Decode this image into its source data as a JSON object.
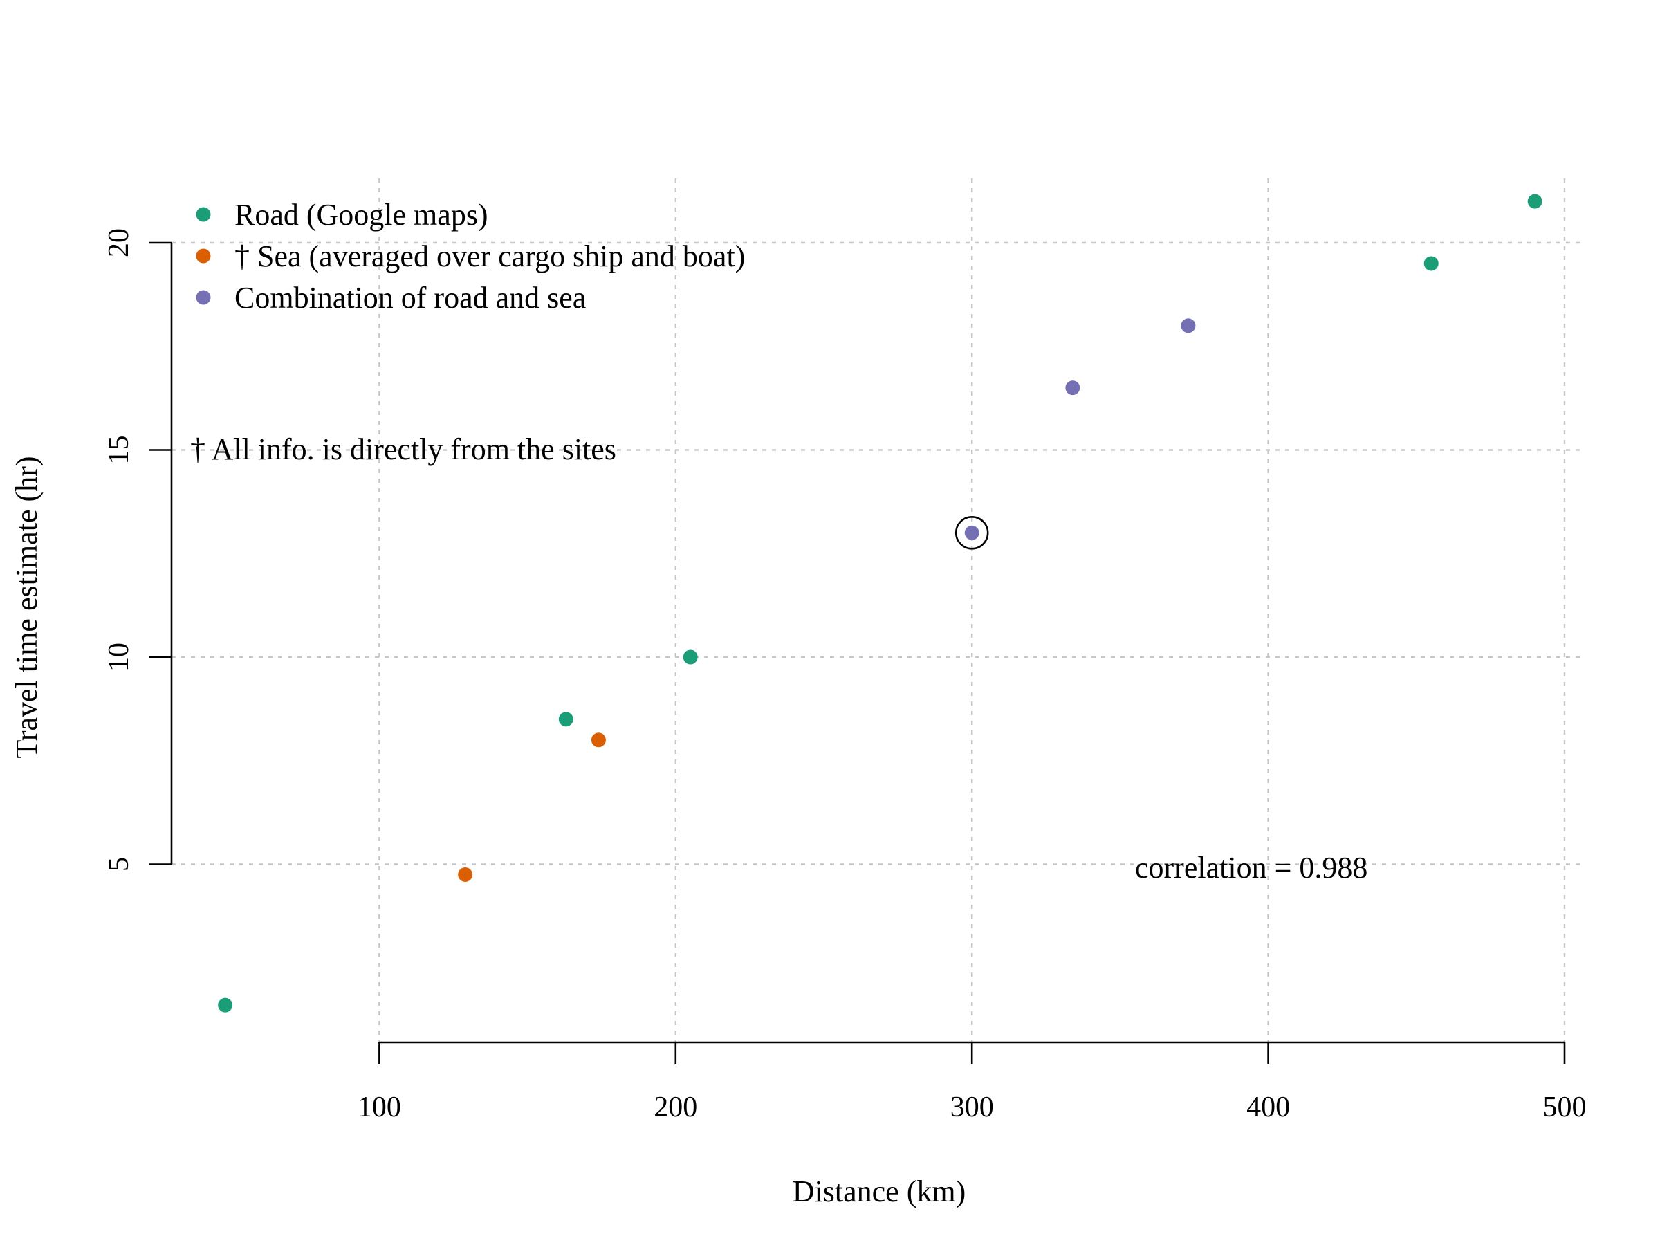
{
  "chart_data": {
    "type": "scatter",
    "title": "",
    "xlabel": "Distance (km)",
    "ylabel": "Travel time estimate (hr)",
    "xlim": [
      30,
      500
    ],
    "ylim": [
      0,
      22
    ],
    "x_ticks": [
      100,
      200,
      300,
      400,
      500
    ],
    "y_ticks": [
      5,
      10,
      15,
      20
    ],
    "grid": true,
    "legend_position": "top-left",
    "series": [
      {
        "name": "Road (Google maps)",
        "color": "#1b9e77",
        "points": [
          {
            "x": 48,
            "y": 1.6
          },
          {
            "x": 163,
            "y": 8.5
          },
          {
            "x": 205,
            "y": 10
          },
          {
            "x": 455,
            "y": 19.5
          },
          {
            "x": 490,
            "y": 21
          }
        ]
      },
      {
        "name": "† Sea (averaged over cargo ship and boat)",
        "color": "#d95f02",
        "points": [
          {
            "x": 129,
            "y": 4.75
          },
          {
            "x": 174,
            "y": 8
          }
        ]
      },
      {
        "name": "Combination of road and sea",
        "color": "#7570b3",
        "points": [
          {
            "x": 300,
            "y": 13,
            "highlighted": true
          },
          {
            "x": 334,
            "y": 16.5
          },
          {
            "x": 373,
            "y": 18
          }
        ]
      }
    ],
    "annotations": {
      "footnote": "† All info. is directly from the sites",
      "correlation": "correlation = 0.988"
    }
  }
}
